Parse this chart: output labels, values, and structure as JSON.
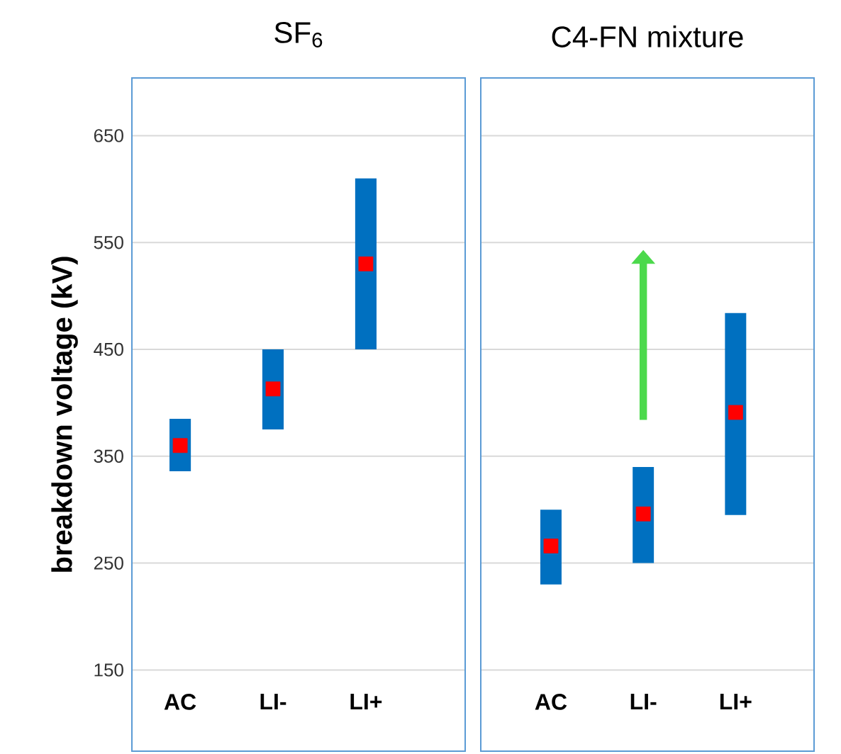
{
  "chart_data": [
    {
      "type": "bar",
      "title": "SF$_{6}$",
      "ylabel": "breakdown voltage (kV)",
      "categories": [
        "AC",
        "LI-",
        "LI+"
      ],
      "ylim": [
        74,
        704
      ],
      "yticks": [
        150,
        250,
        350,
        450,
        550,
        650
      ],
      "grid": "y",
      "marker": "square",
      "series": [
        {
          "type": "bar",
          "color": "#0070c0",
          "base": [
            336,
            375,
            450
          ],
          "values": [
            49,
            75,
            160
          ]
        },
        {
          "type": "scatter",
          "color": "#ff0000",
          "x": [
            "AC",
            "LI-",
            "LI+"
          ],
          "values": [
            360,
            413,
            530
          ]
        }
      ]
    },
    {
      "type": "bar",
      "title": "C4-FN mixture",
      "categories": [
        "AC",
        "LI-",
        "LI+"
      ],
      "ylim": [
        74,
        704
      ],
      "yticks": [
        150,
        250,
        350,
        450,
        550,
        650
      ],
      "grid": "y",
      "marker": "square",
      "tick_labels": "x",
      "series": [
        {
          "type": "bar",
          "color": "#0070c0",
          "base": [
            230,
            250,
            295
          ],
          "values": [
            70,
            90,
            189
          ]
        },
        {
          "type": "scatter",
          "color": "#ff0000",
          "x": [
            "AC",
            "LI-",
            "LI+"
          ],
          "values": [
            266,
            296,
            391
          ]
        }
      ]
    }
  ]
}
